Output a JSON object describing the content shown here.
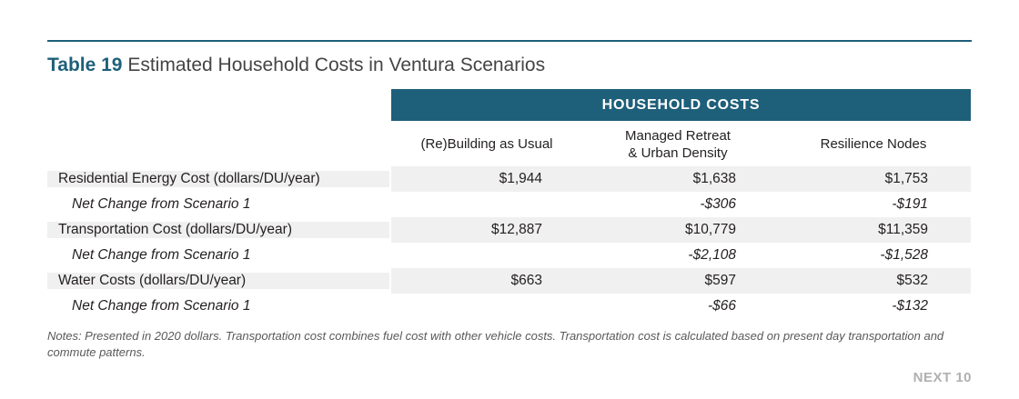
{
  "title": {
    "number": "Table 19",
    "text": "Estimated Household Costs in Ventura Scenarios"
  },
  "header_band": "HOUSEHOLD COSTS",
  "columns": [
    "(Re)Building as Usual",
    "Managed Retreat\n& Urban Density",
    "Resilience Nodes"
  ],
  "column2_lines": [
    "Managed Retreat",
    "& Urban Density"
  ],
  "rows": [
    {
      "label": "Residential Energy Cost (dollars/DU/year)",
      "values": [
        "$1,944",
        "$1,638",
        "$1,753"
      ]
    },
    {
      "label": "Net Change from Scenario 1",
      "values": [
        "",
        "-$306",
        "-$191"
      ]
    },
    {
      "label": "Transportation Cost (dollars/DU/year)",
      "values": [
        "$12,887",
        "$10,779",
        "$11,359"
      ]
    },
    {
      "label": "Net Change from Scenario 1",
      "values": [
        "",
        "-$2,108",
        "-$1,528"
      ]
    },
    {
      "label": "Water Costs (dollars/DU/year)",
      "values": [
        "$663",
        "$597",
        "$532"
      ]
    },
    {
      "label": "Net Change from Scenario 1",
      "values": [
        "",
        "-$66",
        "-$132"
      ]
    }
  ],
  "notes": "Notes: Presented in 2020 dollars. Transportation cost combines fuel cost with other vehicle costs. Transportation cost is calculated based on present day transportation and commute patterns.",
  "footer": "NEXT 10",
  "colors": {
    "accent": "#1e5f7a",
    "row_shade": "#f0f0f0",
    "footer": "#b0b0b0"
  }
}
